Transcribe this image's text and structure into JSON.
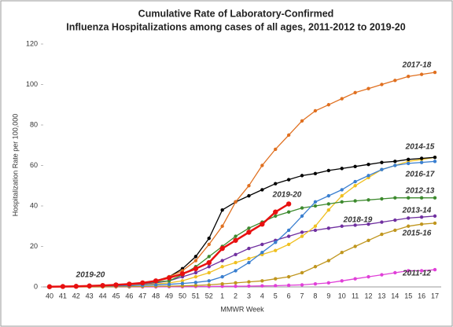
{
  "chart_data": {
    "type": "line",
    "title": [
      "Cumulative Rate of Laboratory-Confirmed",
      "Influenza Hospitalizations among cases of all ages, 2011-2012 to 2019-20"
    ],
    "x_label": "MMWR Week",
    "y_label": "Hospitalization Rate per 100,000",
    "categories": [
      "40",
      "41",
      "42",
      "43",
      "44",
      "45",
      "46",
      "47",
      "48",
      "49",
      "50",
      "51",
      "52",
      "1",
      "2",
      "3",
      "4",
      "5",
      "6",
      "7",
      "8",
      "9",
      "10",
      "11",
      "12",
      "13",
      "14",
      "15",
      "16",
      "17"
    ],
    "ylim": [
      0,
      120
    ],
    "yticks": [
      0,
      20,
      40,
      60,
      80,
      100,
      120
    ],
    "series": [
      {
        "name": "2011-12",
        "color": "#e040d8",
        "values": [
          0,
          0,
          0,
          0,
          0,
          0,
          0,
          0,
          0,
          0.1,
          0.1,
          0.2,
          0.2,
          0.3,
          0.3,
          0.4,
          0.5,
          0.6,
          0.8,
          1,
          1.5,
          2,
          3,
          4,
          5,
          6,
          7,
          8,
          8,
          8.5
        ]
      },
      {
        "name": "2015-16",
        "color": "#c0961e",
        "values": [
          0,
          0,
          0,
          0,
          0,
          0.1,
          0.1,
          0.2,
          0.3,
          0.4,
          0.5,
          0.7,
          1,
          1.5,
          2,
          2.5,
          3,
          4,
          5,
          7,
          10,
          13,
          17,
          20,
          23,
          26,
          28,
          30,
          31,
          31.5
        ]
      },
      {
        "name": "2013-14",
        "color": "#7030a0",
        "values": [
          0.1,
          0.1,
          0.2,
          0.3,
          0.5,
          0.7,
          1,
          1.4,
          2,
          3,
          5,
          7,
          10,
          13,
          16,
          19,
          21,
          23,
          25,
          27,
          28,
          29,
          30,
          30.5,
          31,
          32,
          33,
          34,
          34.5,
          35
        ]
      },
      {
        "name": "2018-19",
        "color": "#f0c020",
        "values": [
          0,
          0.1,
          0.1,
          0.2,
          0.3,
          0.5,
          0.7,
          1,
          1.5,
          2,
          3,
          5,
          7,
          10,
          12,
          14,
          16,
          18,
          21,
          25,
          30,
          38,
          45,
          50,
          54,
          58,
          60,
          62,
          63,
          64
        ]
      },
      {
        "name": "2012-13",
        "color": "#3d8a2e",
        "values": [
          0.1,
          0.2,
          0.3,
          0.4,
          0.6,
          0.9,
          1.3,
          1.8,
          2.5,
          3,
          6,
          10,
          15,
          20,
          25,
          29,
          32,
          35,
          37,
          39,
          40,
          41,
          42,
          42.5,
          43,
          43.5,
          44,
          44,
          44,
          44
        ]
      },
      {
        "name": "2016-17",
        "color": "#3a7fd0",
        "values": [
          0.1,
          0.1,
          0.2,
          0.3,
          0.4,
          0.5,
          0.6,
          0.8,
          1,
          1.3,
          1.7,
          2.2,
          3,
          5,
          8,
          12,
          17,
          22,
          28,
          35,
          42,
          45,
          48,
          52,
          55,
          58,
          60,
          61,
          61.5,
          62
        ]
      },
      {
        "name": "2014-15",
        "color": "#000000",
        "values": [
          0.1,
          0.2,
          0.3,
          0.4,
          0.6,
          0.9,
          1.3,
          2,
          3,
          5,
          9,
          15,
          24,
          38,
          42,
          45,
          48,
          51,
          53,
          55,
          56,
          57.5,
          58.5,
          59.5,
          60.5,
          61.5,
          62,
          63,
          63.5,
          64
        ]
      },
      {
        "name": "2017-18",
        "color": "#e07020",
        "values": [
          0.1,
          0.2,
          0.3,
          0.5,
          0.7,
          1,
          1.4,
          2,
          3,
          5,
          8,
          13,
          21,
          30,
          42,
          50,
          60,
          68,
          75,
          82,
          87,
          90,
          93,
          96,
          98,
          100,
          102,
          104,
          105,
          106
        ]
      },
      {
        "name": "2019-20",
        "color": "#e81010",
        "values": [
          0.1,
          0.2,
          0.3,
          0.5,
          0.7,
          1,
          1.4,
          2,
          3,
          4.5,
          6.5,
          9,
          12,
          19,
          23,
          27,
          31,
          37,
          41,
          null,
          null,
          null,
          null,
          null,
          null,
          null,
          null,
          null,
          null,
          null
        ]
      }
    ],
    "annotations": [
      "2019-20"
    ]
  }
}
